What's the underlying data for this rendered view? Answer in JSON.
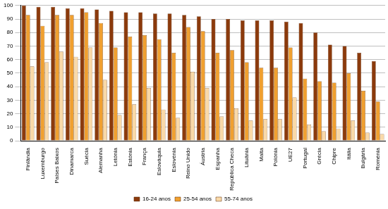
{
  "chart_data": {
    "type": "bar",
    "categories": [
      "Finlândia",
      "Luxemburgo",
      "Países Baixos",
      "Dinamarca",
      "Suécia",
      "Alemanha",
      "Letónia",
      "Estónia",
      "França",
      "Eslováquia",
      "Eslovénia",
      "Reino Unido",
      "Áustria",
      "Espanha",
      "República Checa",
      "Lituânia",
      "Malta",
      "Polónia",
      "UE27",
      "Portugal",
      "Grécia",
      "Chipre",
      "Itália",
      "Bulgária",
      "Roménia"
    ],
    "series": [
      {
        "name": "16-24 anos",
        "color": "#8b3a0c",
        "values": [
          100,
          99,
          99,
          98,
          98,
          97,
          96,
          95,
          95,
          94,
          94,
          93,
          92,
          90,
          90,
          89,
          89,
          89,
          88,
          87,
          80,
          71,
          70,
          65,
          59
        ]
      },
      {
        "name": "25-54 anos",
        "color": "#f0a030",
        "values": [
          93,
          85,
          93,
          93,
          95,
          87,
          69,
          77,
          78,
          75,
          65,
          84,
          81,
          65,
          67,
          58,
          54,
          54,
          69,
          46,
          44,
          43,
          50,
          37,
          29
        ]
      },
      {
        "name": "55-74 anos",
        "color": "#f9d9a8",
        "values": [
          55,
          58,
          66,
          62,
          69,
          45,
          19,
          27,
          39,
          23,
          17,
          51,
          39,
          18,
          24,
          15,
          16,
          16,
          32,
          12,
          7,
          9,
          15,
          6,
          5
        ]
      }
    ],
    "ylim": [
      0,
      100
    ],
    "yticks": [
      0,
      10,
      20,
      30,
      40,
      50,
      60,
      70,
      80,
      90,
      100
    ],
    "grid": true,
    "legend": "bottom"
  }
}
